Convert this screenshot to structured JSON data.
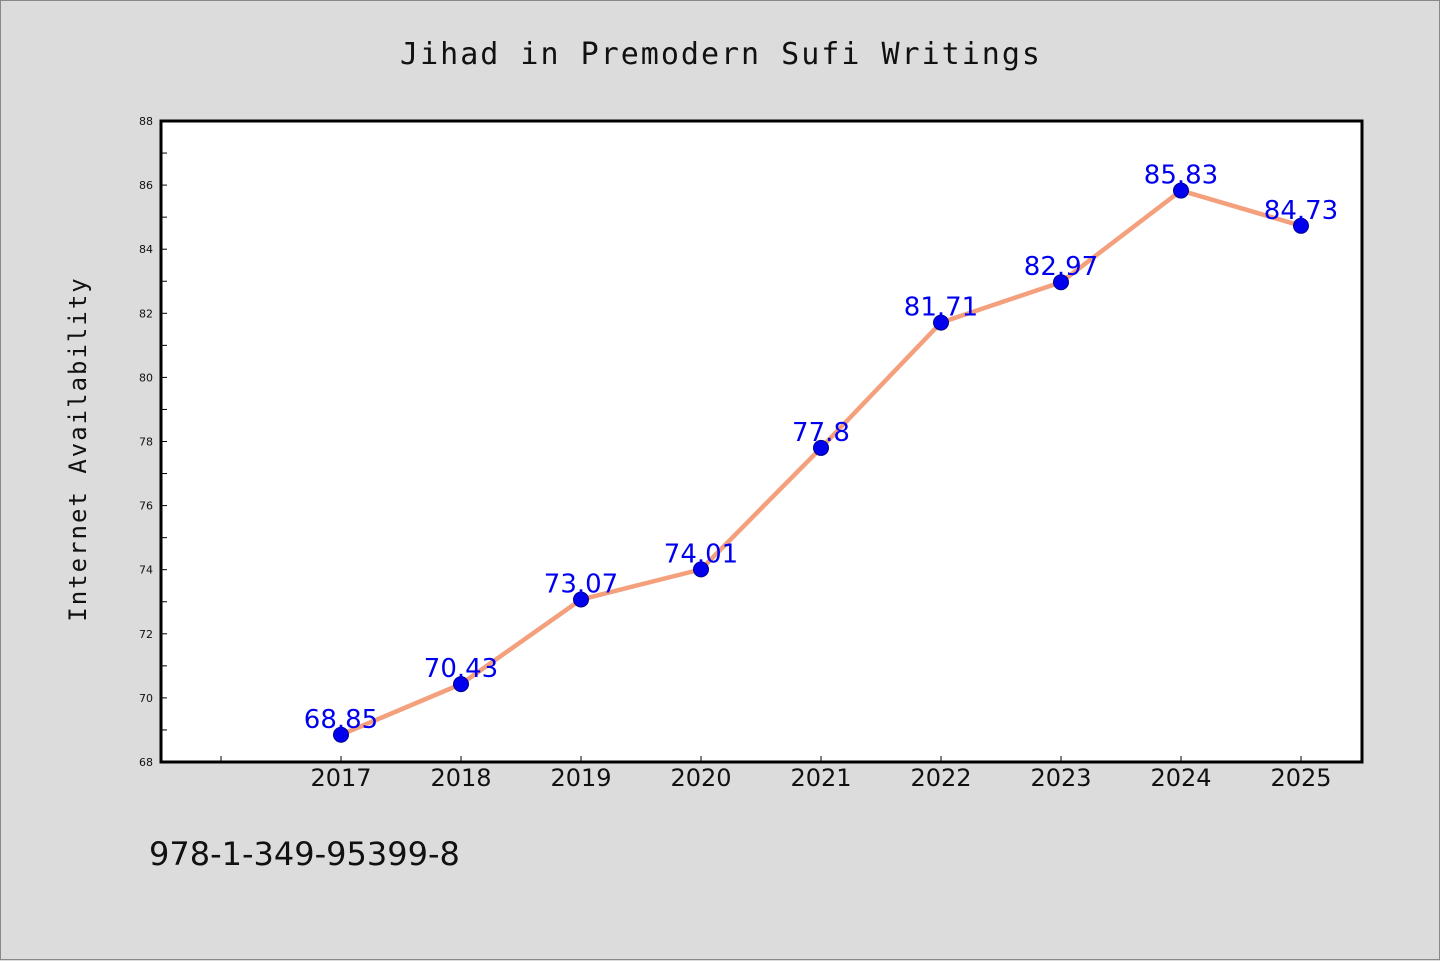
{
  "chart_data": {
    "type": "line",
    "title": "Jihad in Premodern Sufi Writings",
    "xlabel": "",
    "ylabel": "Internet Availability",
    "categories": [
      "2017",
      "2018",
      "2019",
      "2020",
      "2021",
      "2022",
      "2023",
      "2024",
      "2025"
    ],
    "series": [
      {
        "values": [
          68.85,
          70.43,
          73.07,
          74.01,
          77.8,
          81.71,
          82.97,
          85.83,
          84.73
        ]
      }
    ],
    "data_labels": [
      "68.85",
      "70.43",
      "73.07",
      "74.01",
      "77.8",
      "81.71",
      "82.97",
      "85.83",
      "84.73"
    ],
    "ylim": [
      68,
      88
    ],
    "yticks": [
      "68",
      "70",
      "72",
      "74",
      "76",
      "78",
      "80",
      "82",
      "84",
      "86",
      "88"
    ],
    "grid": false,
    "legend": "none",
    "colors": {
      "line": "#f4a07c",
      "marker": "#0000ee",
      "label": "#0000ee",
      "background": "#dcdcdc",
      "plot": "#ffffff"
    }
  },
  "annotation": {
    "text": "978-1-349-95399-8"
  }
}
